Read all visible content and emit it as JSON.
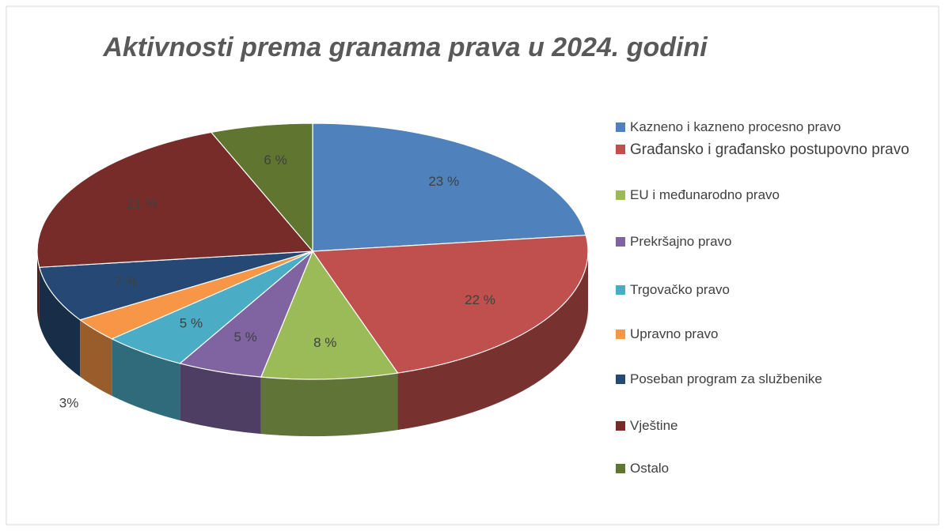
{
  "chart_data": {
    "type": "pie3d",
    "title": "Aktivnosti prema granama prava u 2024. godini",
    "categories": [
      "Kazneno i kazneno procesno pravo",
      "Građansko i građansko postupovno pravo",
      "EU i međunarodno pravo",
      "Prekršajno pravo",
      "Trgovačko pravo",
      "Upravno pravo",
      "Poseban program za službenike",
      "Vještine",
      "Ostalo"
    ],
    "values": [
      23,
      22,
      8,
      5,
      5,
      3,
      7,
      21,
      6
    ],
    "value_labels": [
      "23 %",
      "22 %",
      "8 %",
      "5 %",
      "5 %",
      "3%",
      "7 %",
      "21 %",
      "6 %"
    ],
    "colors": [
      "#4f81bd",
      "#c0504d",
      "#9bbb59",
      "#8064a2",
      "#4bacc6",
      "#f79646",
      "#254874",
      "#772c2a",
      "#5f7530"
    ],
    "legend": "right"
  }
}
